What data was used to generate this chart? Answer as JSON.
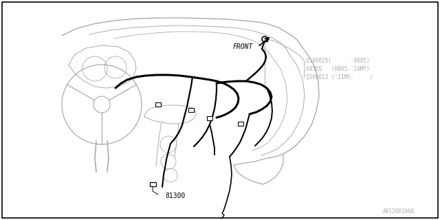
{
  "background_color": "#ffffff",
  "border_color": "#000000",
  "line_color": "#000000",
  "label_color": "#aaaaaa",
  "diagram_number": "A812001066",
  "front_label": "FRONT",
  "part_label_main": "81300",
  "part_refs_line1": "Q500025(      -0805)",
  "part_refs_line2": "0450S   (0805-'10MY)",
  "part_refs_line3": "Q500013 ('11MY-     )",
  "fig_width": 6.4,
  "fig_height": 3.2,
  "dpi": 100
}
